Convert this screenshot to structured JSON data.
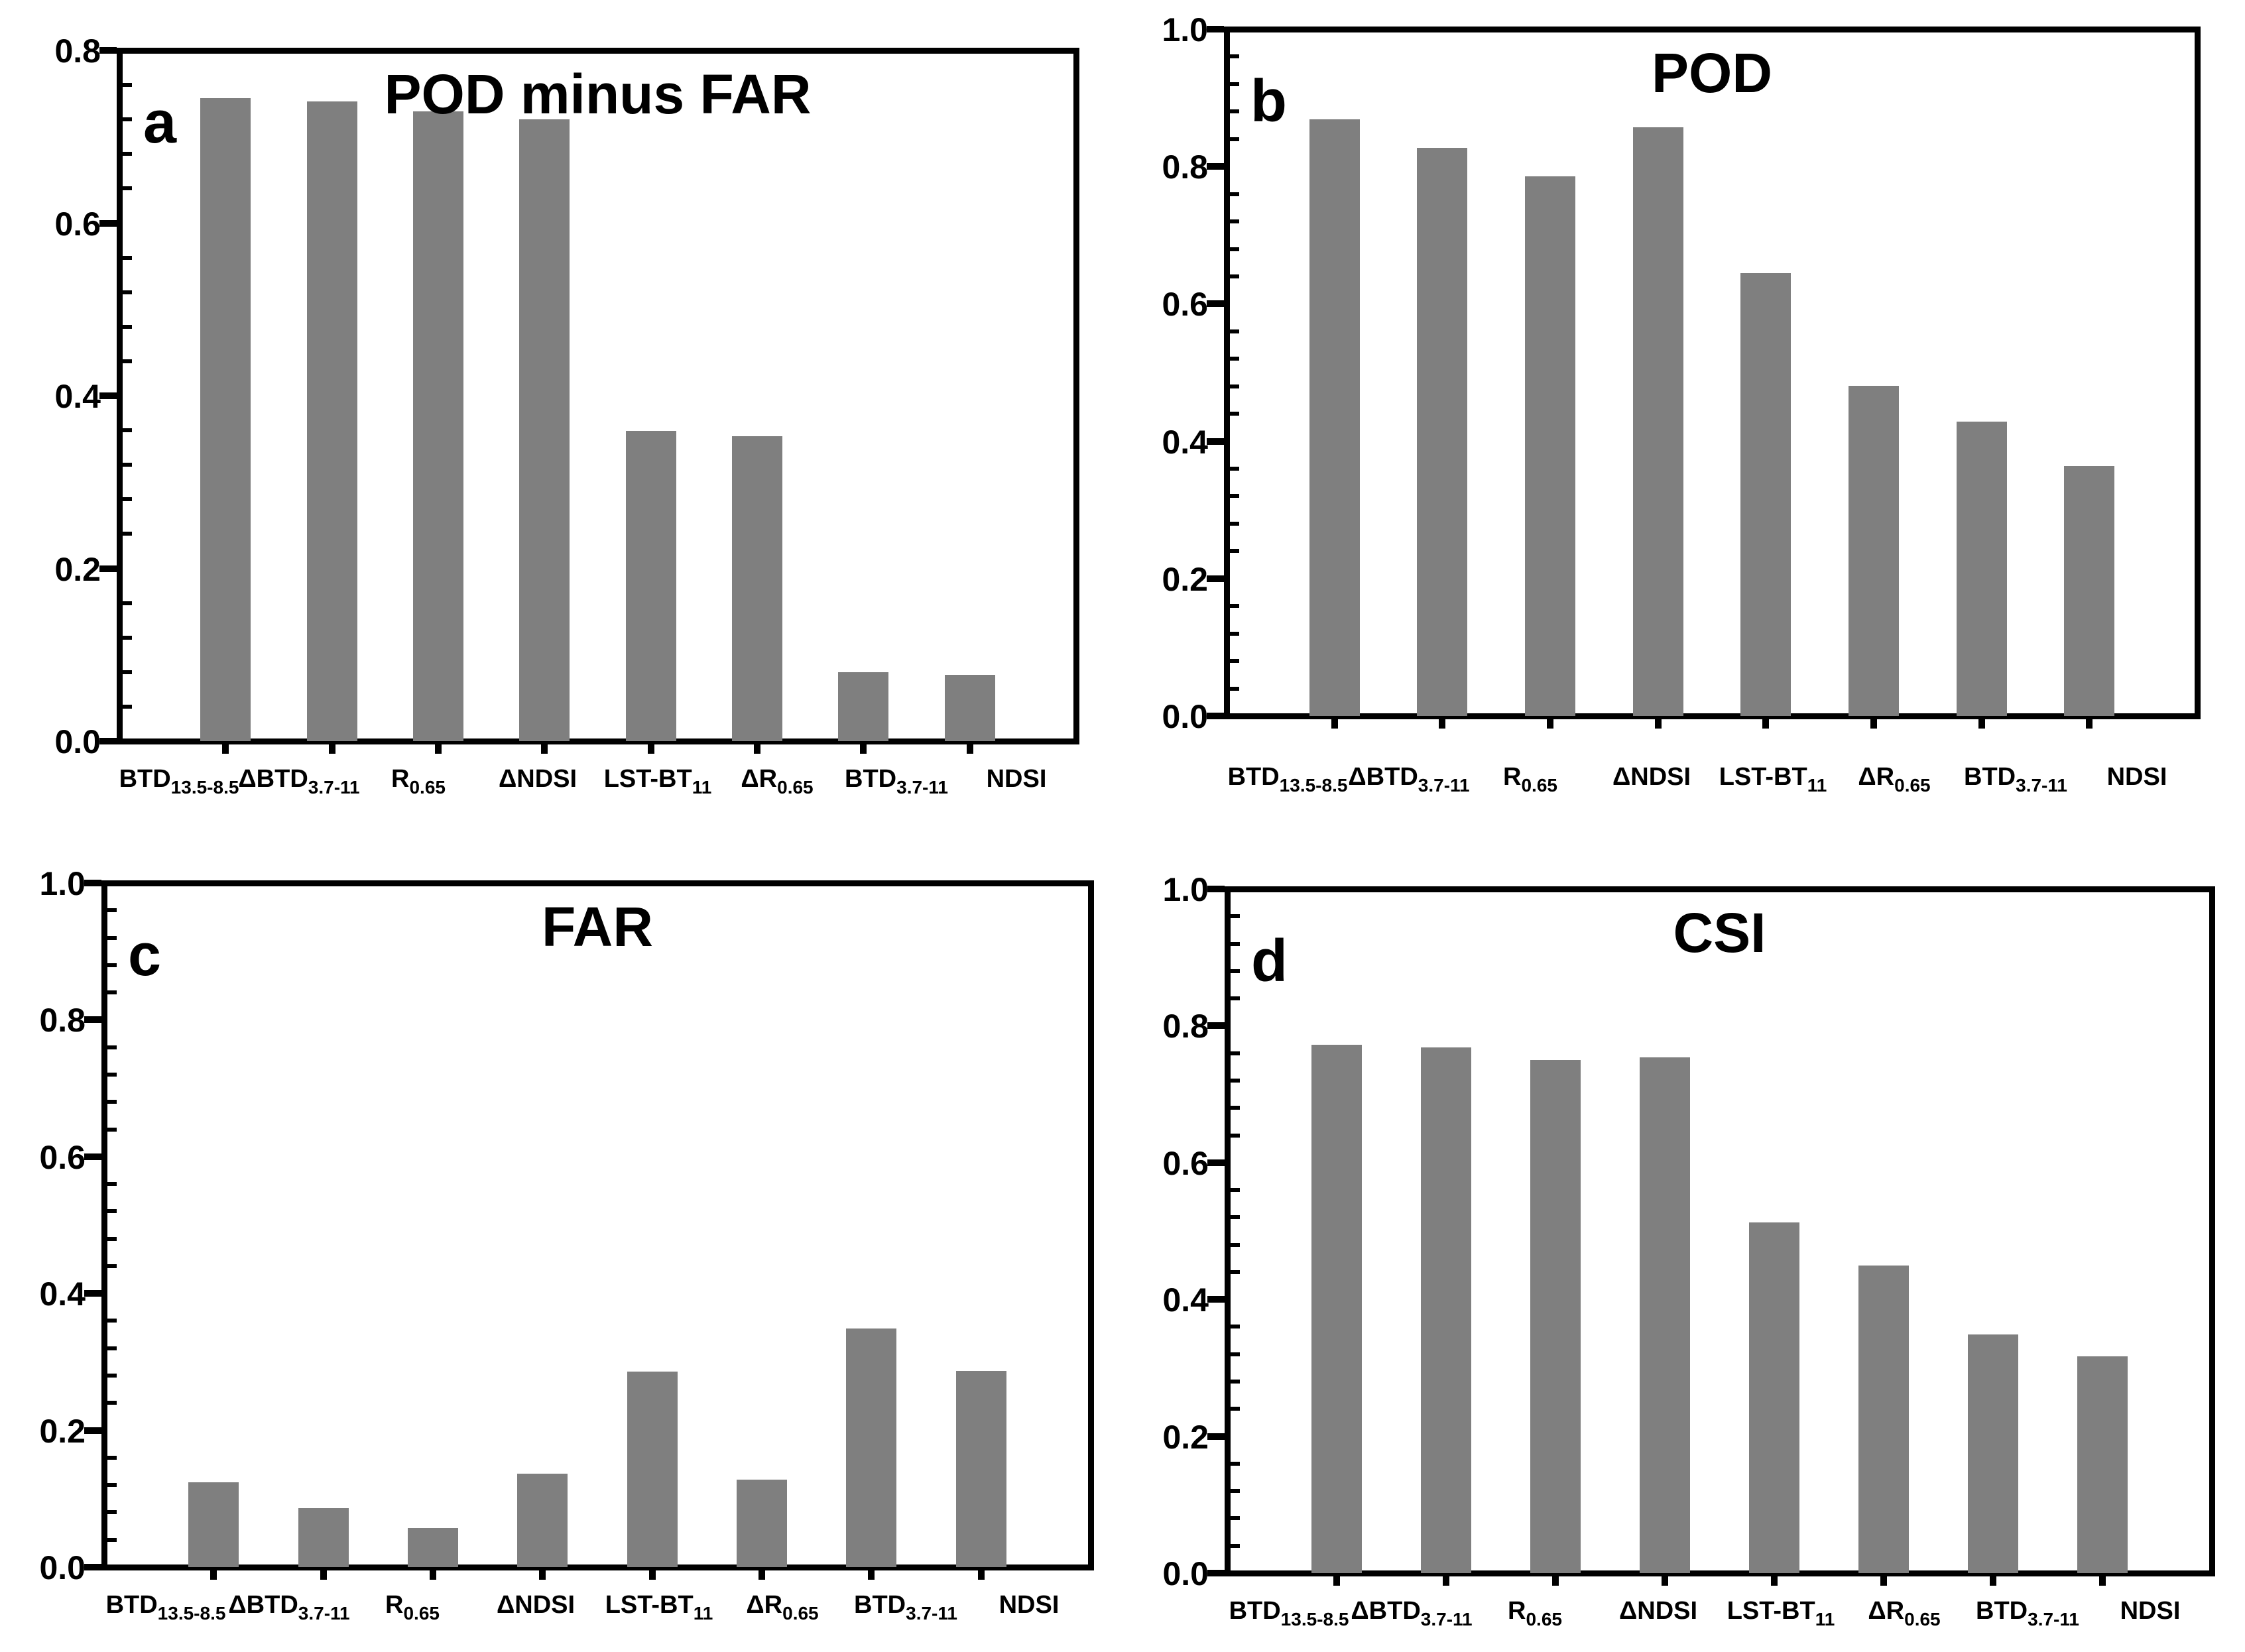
{
  "figure": {
    "background": "#ffffff",
    "bar_color": "#7f7f7f",
    "axis_color": "#000000",
    "categories_rich": [
      {
        "main": "BTD",
        "sub": "13.5-8.5"
      },
      {
        "main": "ΔBTD",
        "sub": "3.7-11"
      },
      {
        "main": "R",
        "sub": "0.65"
      },
      {
        "main": "ΔNDSI",
        "sub": ""
      },
      {
        "main": "LST-BT",
        "sub": "11"
      },
      {
        "main": "ΔR",
        "sub": "0.65"
      },
      {
        "main": "BTD",
        "sub": "3.7-11"
      },
      {
        "main": "NDSI",
        "sub": ""
      }
    ]
  },
  "chart_data": [
    {
      "type": "bar",
      "panel_label": "a",
      "title": "POD minus FAR",
      "categories": [
        "BTD_13.5-8.5",
        "ΔBTD_3.7-11",
        "R_0.65",
        "ΔNDSI",
        "LST-BT_11",
        "ΔR_0.65",
        "BTD_3.7-11",
        "NDSI"
      ],
      "values": [
        0.745,
        0.741,
        0.729,
        0.72,
        0.359,
        0.353,
        0.08,
        0.077
      ],
      "xlabel": "",
      "ylabel": "",
      "ylim": [
        0.0,
        0.8
      ],
      "yticks": [
        0.0,
        0.2,
        0.4,
        0.6,
        0.8
      ],
      "ytick_labels": [
        "0.0",
        "0.2",
        "0.4",
        "0.6",
        "0.8"
      ],
      "minor_tick_step": 0.04,
      "grid": false,
      "legend": "none",
      "bar_color": "#7f7f7f"
    },
    {
      "type": "bar",
      "panel_label": "b",
      "title": "POD",
      "categories": [
        "BTD_13.5-8.5",
        "ΔBTD_3.7-11",
        "R_0.65",
        "ΔNDSI",
        "LST-BT_11",
        "ΔR_0.65",
        "BTD_3.7-11",
        "NDSI"
      ],
      "values": [
        0.869,
        0.827,
        0.786,
        0.857,
        0.645,
        0.481,
        0.429,
        0.364
      ],
      "xlabel": "",
      "ylabel": "",
      "ylim": [
        0.0,
        1.0
      ],
      "yticks": [
        0.0,
        0.2,
        0.4,
        0.6,
        0.8,
        1.0
      ],
      "ytick_labels": [
        "0.0",
        "0.2",
        "0.4",
        "0.6",
        "0.8",
        "1.0"
      ],
      "minor_tick_step": 0.04,
      "grid": false,
      "legend": "none",
      "bar_color": "#7f7f7f"
    },
    {
      "type": "bar",
      "panel_label": "c",
      "title": "FAR",
      "categories": [
        "BTD_13.5-8.5",
        "ΔBTD_3.7-11",
        "R_0.65",
        "ΔNDSI",
        "LST-BT_11",
        "ΔR_0.65",
        "BTD_3.7-11",
        "NDSI"
      ],
      "values": [
        0.124,
        0.086,
        0.057,
        0.137,
        0.286,
        0.128,
        0.349,
        0.287
      ],
      "xlabel": "",
      "ylabel": "",
      "ylim": [
        0.0,
        1.0
      ],
      "yticks": [
        0.0,
        0.2,
        0.4,
        0.6,
        0.8,
        1.0
      ],
      "ytick_labels": [
        "0.0",
        "0.2",
        "0.4",
        "0.6",
        "0.8",
        "1.0"
      ],
      "minor_tick_step": 0.04,
      "grid": false,
      "legend": "none",
      "bar_color": "#7f7f7f"
    },
    {
      "type": "bar",
      "panel_label": "d",
      "title": "CSI",
      "categories": [
        "BTD_13.5-8.5",
        "ΔBTD_3.7-11",
        "R_0.65",
        "ΔNDSI",
        "LST-BT_11",
        "ΔR_0.65",
        "BTD_3.7-11",
        "NDSI"
      ],
      "values": [
        0.772,
        0.768,
        0.75,
        0.754,
        0.513,
        0.45,
        0.349,
        0.317
      ],
      "xlabel": "",
      "ylabel": "",
      "ylim": [
        0.0,
        1.0
      ],
      "yticks": [
        0.0,
        0.2,
        0.4,
        0.6,
        0.8,
        1.0
      ],
      "ytick_labels": [
        "0.0",
        "0.2",
        "0.4",
        "0.6",
        "0.8",
        "1.0"
      ],
      "minor_tick_step": 0.04,
      "grid": false,
      "legend": "none",
      "bar_color": "#7f7f7f"
    }
  ]
}
